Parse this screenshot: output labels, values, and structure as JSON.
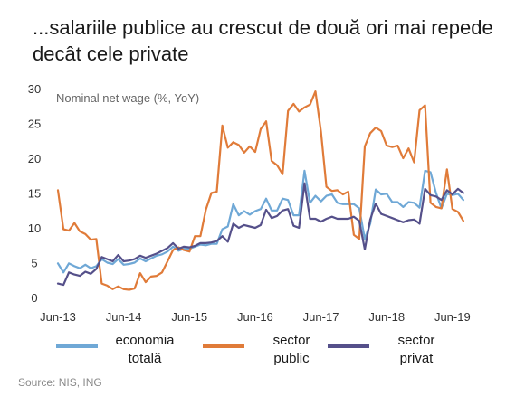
{
  "title": "...salariile publice au crescut de două ori mai repede decât cele private",
  "source": "Source: NIS, ING",
  "chart_data": {
    "type": "line",
    "ylabel": "Nominal net wage (%, YoY)",
    "ylim": [
      0,
      30
    ],
    "yticks": [
      "0",
      "5",
      "10",
      "15",
      "20",
      "25",
      "30"
    ],
    "xticks": [
      "Jun-13",
      "Jun-14",
      "Jun-15",
      "Jun-16",
      "Jun-17",
      "Jun-18",
      "Jun-19"
    ],
    "xrange": [
      "2013-06",
      "2019-09"
    ],
    "grid": false,
    "legend_position": "bottom",
    "series": [
      {
        "name": "economia totală",
        "color": "#6fa8d6",
        "x": [
          "2013-06",
          "2013-07",
          "2013-08",
          "2013-09",
          "2013-10",
          "2013-11",
          "2013-12",
          "2014-01",
          "2014-02",
          "2014-03",
          "2014-04",
          "2014-05",
          "2014-06",
          "2014-07",
          "2014-08",
          "2014-09",
          "2014-10",
          "2014-11",
          "2014-12",
          "2015-01",
          "2015-02",
          "2015-03",
          "2015-04",
          "2015-05",
          "2015-06",
          "2015-07",
          "2015-08",
          "2015-09",
          "2015-10",
          "2015-11",
          "2015-12",
          "2016-01",
          "2016-02",
          "2016-03",
          "2016-04",
          "2016-05",
          "2016-06",
          "2016-07",
          "2016-08",
          "2016-09",
          "2016-10",
          "2016-11",
          "2016-12",
          "2017-01",
          "2017-02",
          "2017-03",
          "2017-04",
          "2017-05",
          "2017-06",
          "2017-07",
          "2017-08",
          "2017-09",
          "2017-10",
          "2017-11",
          "2017-12",
          "2018-01",
          "2018-02",
          "2018-03",
          "2018-04",
          "2018-05",
          "2018-06",
          "2018-07",
          "2018-08",
          "2018-09",
          "2018-10",
          "2018-11",
          "2018-12",
          "2019-01",
          "2019-02",
          "2019-03",
          "2019-04",
          "2019-05",
          "2019-06",
          "2019-07",
          "2019-08"
        ],
        "values": [
          4.9,
          3.6,
          4.9,
          4.5,
          4.2,
          4.7,
          4.2,
          4.5,
          5.5,
          5.0,
          4.8,
          5.5,
          4.7,
          4.8,
          5.0,
          5.6,
          5.2,
          5.6,
          6.0,
          6.2,
          6.6,
          7.3,
          6.7,
          7.0,
          7.0,
          7.3,
          7.6,
          7.5,
          7.7,
          7.7,
          9.8,
          10.2,
          13.4,
          11.8,
          12.4,
          11.9,
          12.4,
          12.7,
          14.2,
          12.5,
          12.5,
          14.2,
          14.0,
          11.8,
          11.8,
          18.2,
          13.6,
          14.6,
          13.8,
          14.6,
          14.8,
          13.6,
          13.4,
          13.4,
          13.4,
          12.8,
          8.4,
          10.6,
          15.5,
          14.8,
          14.9,
          13.7,
          13.7,
          13.0,
          13.7,
          13.6,
          12.9,
          18.2,
          18.0,
          15.0,
          12.8,
          14.9,
          14.7,
          14.9,
          14.0
        ]
      },
      {
        "name": "sector public",
        "color": "#e07b39",
        "x": [
          "2013-06",
          "2013-07",
          "2013-08",
          "2013-09",
          "2013-10",
          "2013-11",
          "2013-12",
          "2014-01",
          "2014-02",
          "2014-03",
          "2014-04",
          "2014-05",
          "2014-06",
          "2014-07",
          "2014-08",
          "2014-09",
          "2014-10",
          "2014-11",
          "2014-12",
          "2015-01",
          "2015-02",
          "2015-03",
          "2015-04",
          "2015-05",
          "2015-06",
          "2015-07",
          "2015-08",
          "2015-09",
          "2015-10",
          "2015-11",
          "2015-12",
          "2016-01",
          "2016-02",
          "2016-03",
          "2016-04",
          "2016-05",
          "2016-06",
          "2016-07",
          "2016-08",
          "2016-09",
          "2016-10",
          "2016-11",
          "2016-12",
          "2017-01",
          "2017-02",
          "2017-03",
          "2017-04",
          "2017-05",
          "2017-06",
          "2017-07",
          "2017-08",
          "2017-09",
          "2017-10",
          "2017-11",
          "2017-12",
          "2018-01",
          "2018-02",
          "2018-03",
          "2018-04",
          "2018-05",
          "2018-06",
          "2018-07",
          "2018-08",
          "2018-09",
          "2018-10",
          "2018-11",
          "2018-12",
          "2019-01",
          "2019-02",
          "2019-03",
          "2019-04",
          "2019-05",
          "2019-06",
          "2019-07",
          "2019-08"
        ],
        "values": [
          15.4,
          9.8,
          9.6,
          10.7,
          9.5,
          9.1,
          8.3,
          8.4,
          2.0,
          1.7,
          1.2,
          1.6,
          1.2,
          1.1,
          1.3,
          3.5,
          2.2,
          3.0,
          3.1,
          3.6,
          5.2,
          6.8,
          7.2,
          6.8,
          6.6,
          8.8,
          8.8,
          12.6,
          15.0,
          15.2,
          24.7,
          21.5,
          22.3,
          21.9,
          20.8,
          21.7,
          20.9,
          24.2,
          25.3,
          19.6,
          19.0,
          17.7,
          26.8,
          27.8,
          26.7,
          27.3,
          27.7,
          29.6,
          23.8,
          15.9,
          15.3,
          15.4,
          14.8,
          15.2,
          9.0,
          8.4,
          21.7,
          23.6,
          24.4,
          23.9,
          21.8,
          21.6,
          21.8,
          20.0,
          21.4,
          19.4,
          26.9,
          27.6,
          13.6,
          13.0,
          12.8,
          18.4,
          12.7,
          12.3,
          11.0
        ]
      },
      {
        "name": "sector privat",
        "color": "#55508a",
        "x": [
          "2013-06",
          "2013-07",
          "2013-08",
          "2013-09",
          "2013-10",
          "2013-11",
          "2013-12",
          "2014-01",
          "2014-02",
          "2014-03",
          "2014-04",
          "2014-05",
          "2014-06",
          "2014-07",
          "2014-08",
          "2014-09",
          "2014-10",
          "2014-11",
          "2014-12",
          "2015-01",
          "2015-02",
          "2015-03",
          "2015-04",
          "2015-05",
          "2015-06",
          "2015-07",
          "2015-08",
          "2015-09",
          "2015-10",
          "2015-11",
          "2015-12",
          "2016-01",
          "2016-02",
          "2016-03",
          "2016-04",
          "2016-05",
          "2016-06",
          "2016-07",
          "2016-08",
          "2016-09",
          "2016-10",
          "2016-11",
          "2016-12",
          "2017-01",
          "2017-02",
          "2017-03",
          "2017-04",
          "2017-05",
          "2017-06",
          "2017-07",
          "2017-08",
          "2017-09",
          "2017-10",
          "2017-11",
          "2017-12",
          "2018-01",
          "2018-02",
          "2018-03",
          "2018-04",
          "2018-05",
          "2018-06",
          "2018-07",
          "2018-08",
          "2018-09",
          "2018-10",
          "2018-11",
          "2018-12",
          "2019-01",
          "2019-02",
          "2019-03",
          "2019-04",
          "2019-05",
          "2019-06",
          "2019-07",
          "2019-08"
        ],
        "values": [
          2.0,
          1.8,
          3.6,
          3.3,
          3.1,
          3.7,
          3.4,
          4.1,
          5.8,
          5.5,
          5.2,
          6.1,
          5.2,
          5.3,
          5.5,
          6.0,
          5.7,
          6.0,
          6.3,
          6.7,
          7.1,
          7.8,
          7.0,
          7.3,
          7.2,
          7.4,
          7.8,
          7.8,
          7.9,
          8.1,
          8.8,
          8.0,
          10.6,
          10.0,
          10.4,
          10.2,
          10.0,
          10.4,
          12.6,
          11.4,
          11.7,
          12.5,
          12.7,
          10.3,
          10.0,
          16.4,
          11.3,
          11.3,
          10.9,
          11.3,
          11.6,
          11.3,
          11.3,
          11.3,
          11.6,
          11.0,
          6.9,
          11.2,
          13.5,
          12.0,
          11.7,
          11.4,
          11.1,
          10.8,
          11.1,
          11.2,
          10.6,
          15.6,
          14.7,
          14.5,
          14.0,
          15.4,
          14.8,
          15.6,
          15.0
        ]
      }
    ]
  }
}
